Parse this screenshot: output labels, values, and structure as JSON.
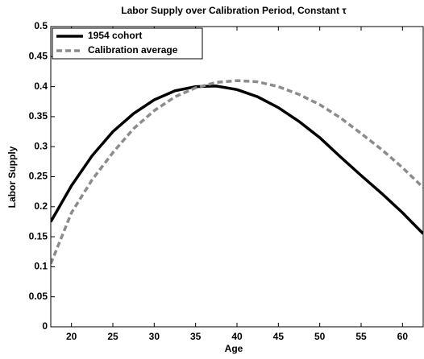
{
  "chart_data": {
    "type": "line",
    "title": "Labor Supply over Calibration Period, Constant τ",
    "xlabel": "Age",
    "ylabel": "Labor Supply",
    "x": [
      17.5,
      20,
      22.5,
      25,
      27.5,
      30,
      32.5,
      35,
      37.5,
      40,
      42.5,
      45,
      47.5,
      50,
      52.5,
      55,
      57.5,
      60,
      62.5
    ],
    "series": [
      {
        "name": "1954 cohort",
        "color": "#000000",
        "dash": false,
        "values": [
          0.175,
          0.235,
          0.285,
          0.325,
          0.355,
          0.378,
          0.393,
          0.4,
          0.401,
          0.395,
          0.383,
          0.365,
          0.342,
          0.315,
          0.283,
          0.252,
          0.222,
          0.19,
          0.155
        ]
      },
      {
        "name": "Calibration average",
        "color": "#8c8c8c",
        "dash": true,
        "values": [
          0.105,
          0.19,
          0.245,
          0.29,
          0.33,
          0.36,
          0.383,
          0.398,
          0.407,
          0.41,
          0.408,
          0.4,
          0.387,
          0.37,
          0.348,
          0.322,
          0.295,
          0.265,
          0.232
        ]
      }
    ],
    "xlim": [
      17.5,
      62.5
    ],
    "xticks": [
      20,
      25,
      30,
      35,
      40,
      45,
      50,
      55,
      60
    ],
    "ylim": [
      0,
      0.5
    ],
    "yticks": [
      0,
      0.05,
      0.1,
      0.15,
      0.2,
      0.25,
      0.3,
      0.35,
      0.4,
      0.45,
      0.5
    ],
    "legend": "upper left",
    "grid": false
  }
}
